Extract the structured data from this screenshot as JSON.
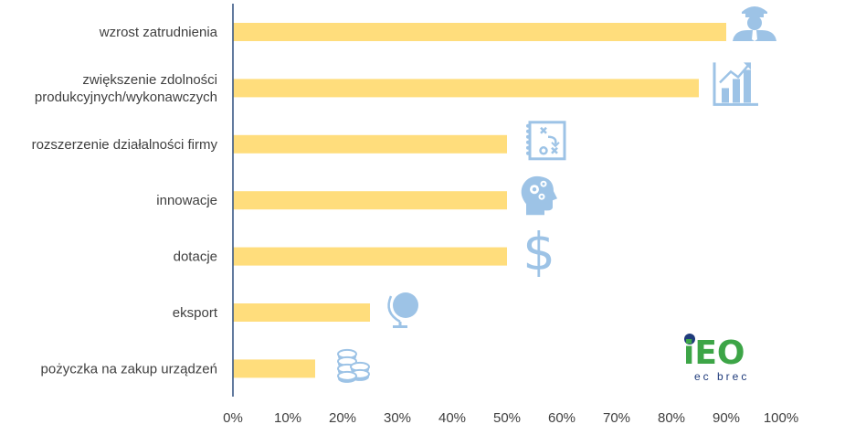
{
  "chart_data": {
    "type": "bar",
    "orientation": "horizontal",
    "categories": [
      [
        "wzrost zatrudnienia"
      ],
      [
        "zwiększenie zdolności",
        "produkcyjnych/wykonawczych"
      ],
      [
        "rozszerzenie działalności firmy"
      ],
      [
        "innowacje"
      ],
      [
        "dotacje"
      ],
      [
        "eksport"
      ],
      [
        "pożyczka na zakup urządzeń"
      ]
    ],
    "values": [
      90,
      85,
      50,
      50,
      50,
      25,
      15
    ],
    "icons": [
      "worker-icon",
      "growth-chart-icon",
      "strategy-board-icon",
      "brain-gears-icon",
      "dollar-icon",
      "globe-icon",
      "coins-icon"
    ],
    "xlim": [
      0,
      100
    ],
    "xticks": [
      "0%",
      "10%",
      "20%",
      "30%",
      "40%",
      "50%",
      "60%",
      "70%",
      "80%",
      "90%",
      "100%"
    ],
    "bar_color": "#FFDD7C",
    "icon_color": "#9DC3E6",
    "axis_color": "#2F4F7F"
  },
  "logo": {
    "main": "iEO",
    "sub": "ec brec",
    "color_green": "#3DA547",
    "color_navy": "#1F3B7B"
  }
}
